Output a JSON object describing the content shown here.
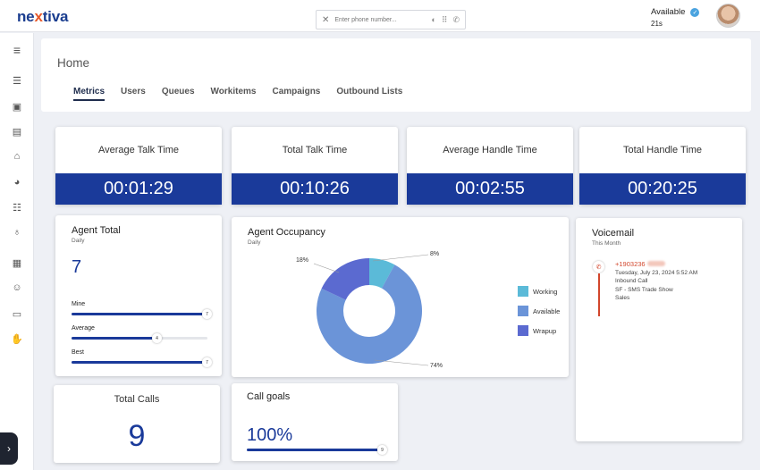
{
  "app": {
    "logo_prefix": "ne",
    "logo_x": "x",
    "logo_suffix": "tiva"
  },
  "search": {
    "placeholder": "Enter phone number...",
    "clear_icon": "close-icon",
    "icons": [
      "clock-icon",
      "keypad-icon",
      "phone-icon"
    ]
  },
  "user": {
    "status": "Available",
    "timer": "21s"
  },
  "sidebar": {
    "icons": [
      "menu-icon",
      "list-icon",
      "contacts-icon",
      "document-icon",
      "home-icon",
      "pie-chart-icon",
      "queue-list-icon",
      "microphone-icon",
      "apps-icon",
      "agent-icon",
      "id-card-icon",
      "hand-icon"
    ],
    "expand_icon": "chevron-right-icon"
  },
  "header": {
    "title": "Home",
    "tabs": [
      {
        "label": "Metrics",
        "active": true
      },
      {
        "label": "Users"
      },
      {
        "label": "Queues"
      },
      {
        "label": "Workitems"
      },
      {
        "label": "Campaigns"
      },
      {
        "label": "Outbound Lists"
      }
    ]
  },
  "metrics": [
    {
      "title": "Average Talk Time",
      "value": "00:01:29"
    },
    {
      "title": "Total Talk Time",
      "value": "00:10:26"
    },
    {
      "title": "Average Handle Time",
      "value": "00:02:55"
    },
    {
      "title": "Total Handle Time",
      "value": "00:20:25"
    }
  ],
  "agent_total": {
    "title": "Agent Total",
    "subtitle": "Daily",
    "value": "7",
    "bars": [
      {
        "label": "Mine",
        "value": "7",
        "fraction": 1.0
      },
      {
        "label": "Average",
        "value": "4",
        "fraction": 0.63
      },
      {
        "label": "Best",
        "value": "7",
        "fraction": 1.0
      }
    ]
  },
  "occupancy": {
    "title": "Agent Occupancy",
    "subtitle": "Daily",
    "legend": [
      {
        "label": "Working",
        "color": "#5bbad8"
      },
      {
        "label": "Available",
        "color": "#6b94d8"
      },
      {
        "label": "Wrapup",
        "color": "#5b6ad0"
      }
    ],
    "labels": [
      "8%",
      "74%",
      "18%"
    ]
  },
  "chart_data": {
    "type": "pie",
    "categories": [
      "Working",
      "Available",
      "Wrapup"
    ],
    "values": [
      8,
      74,
      18
    ],
    "title": "Agent Occupancy",
    "donut": true
  },
  "voicemail": {
    "title": "Voicemail",
    "subtitle": "This Month",
    "number": "+1903236",
    "date": "Tuesday, July 23, 2024 5:52 AM",
    "type": "Inbound Call",
    "queue": "SF - SMS Trade Show",
    "dept": "Sales",
    "icon": "phone-missed-icon"
  },
  "total_calls": {
    "title": "Total Calls",
    "value": "9"
  },
  "call_goals": {
    "title": "Call goals",
    "value": "100%",
    "knob": "9",
    "fraction": 1.0
  }
}
